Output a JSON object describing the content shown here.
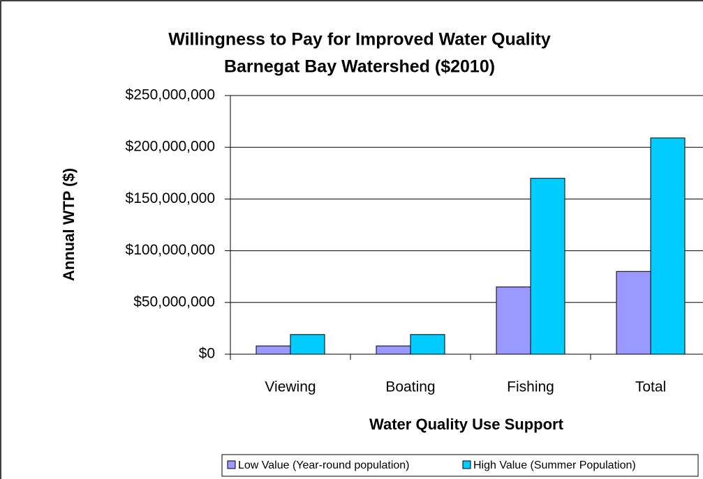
{
  "chart_data": {
    "type": "bar",
    "title": [
      "Willingness to Pay for Improved Water Quality",
      "Barnegat Bay Watershed ($2010)"
    ],
    "x_label": "Water Quality Use Support",
    "y_label": "Annual WTP ($)",
    "categories": [
      "Viewing",
      "Boating",
      "Fishing",
      "Total"
    ],
    "series": [
      {
        "name": "Low Value (Year-round population)",
        "color": "#9999ff",
        "values": [
          8000000,
          8000000,
          65000000,
          80000000
        ]
      },
      {
        "name": "High Value (Summer Population)",
        "color": "#00ccff",
        "values": [
          19000000,
          19000000,
          170000000,
          209000000
        ]
      }
    ],
    "ylim": [
      0,
      250000000
    ],
    "yticks": [
      {
        "value": 0,
        "label": "$0"
      },
      {
        "value": 50000000,
        "label": "$50,000,000"
      },
      {
        "value": 100000000,
        "label": "$100,000,000"
      },
      {
        "value": 150000000,
        "label": "$150,000,000"
      },
      {
        "value": 200000000,
        "label": "$200,000,000"
      },
      {
        "value": 250000000,
        "label": "$250,000,000"
      }
    ],
    "grid": true,
    "legend": "bottom"
  }
}
